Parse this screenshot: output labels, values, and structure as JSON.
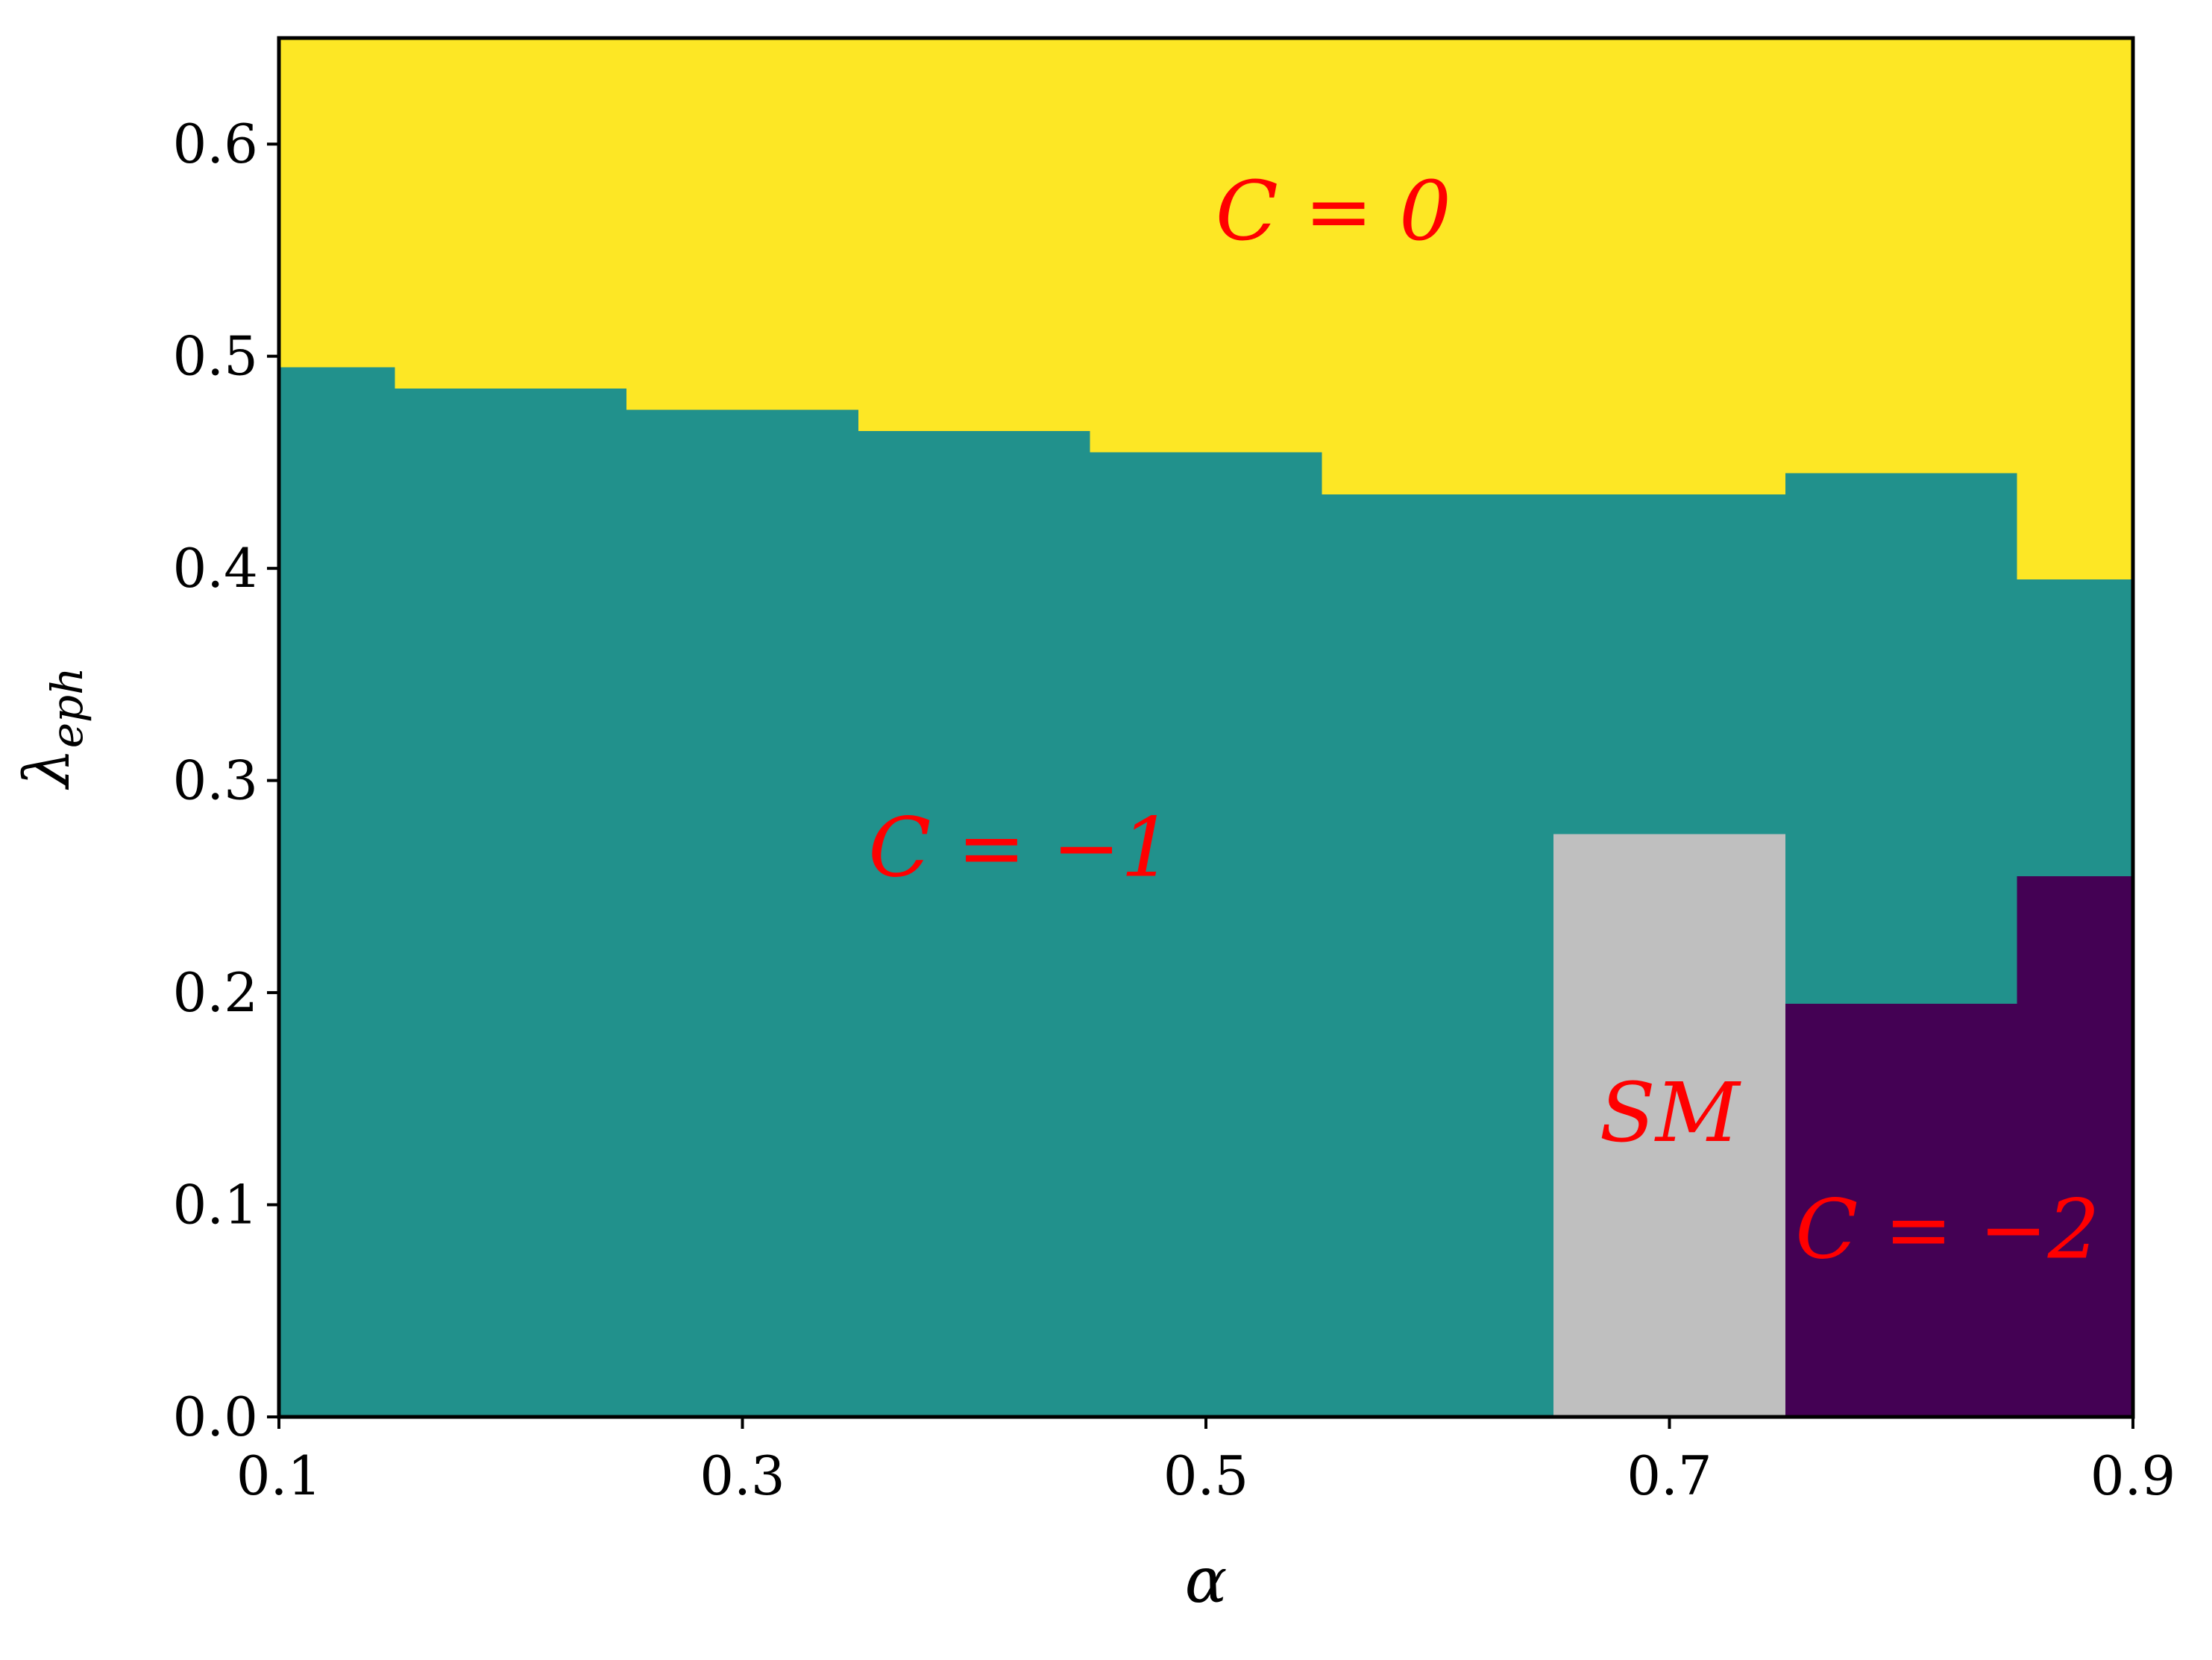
{
  "chart_data": {
    "type": "heatmap",
    "xlabel": "α",
    "ylabel": "λ",
    "ylabel_subscript": "eph",
    "xlim": [
      0.1,
      0.9
    ],
    "ylim": [
      0.0,
      0.65
    ],
    "xticks": [
      0.1,
      0.3,
      0.5,
      0.7,
      0.9
    ],
    "xtick_labels": [
      "0.1",
      "0.3",
      "0.5",
      "0.7",
      "0.9"
    ],
    "yticks": [
      0.0,
      0.1,
      0.2,
      0.3,
      0.4,
      0.5,
      0.6
    ],
    "ytick_labels": [
      "0.0",
      "0.1",
      "0.2",
      "0.3",
      "0.4",
      "0.5",
      "0.6"
    ],
    "grid": false,
    "colors": {
      "C=0": "#fde725",
      "C=-1": "#21918c",
      "C=-2": "#440154",
      "SM": "#bfbfbf"
    },
    "phase_columns": [
      {
        "alpha_range": [
          0.1,
          0.15
        ],
        "bands": [
          {
            "phase": "C=-1",
            "y": [
              0.0,
              0.495
            ]
          },
          {
            "phase": "C=0",
            "y": [
              0.495,
              0.65
            ]
          }
        ]
      },
      {
        "alpha_range": [
          0.15,
          0.25
        ],
        "bands": [
          {
            "phase": "C=-1",
            "y": [
              0.0,
              0.485
            ]
          },
          {
            "phase": "C=0",
            "y": [
              0.485,
              0.65
            ]
          }
        ]
      },
      {
        "alpha_range": [
          0.25,
          0.35
        ],
        "bands": [
          {
            "phase": "C=-1",
            "y": [
              0.0,
              0.475
            ]
          },
          {
            "phase": "C=0",
            "y": [
              0.475,
              0.65
            ]
          }
        ]
      },
      {
        "alpha_range": [
          0.35,
          0.45
        ],
        "bands": [
          {
            "phase": "C=-1",
            "y": [
              0.0,
              0.465
            ]
          },
          {
            "phase": "C=0",
            "y": [
              0.465,
              0.65
            ]
          }
        ]
      },
      {
        "alpha_range": [
          0.45,
          0.55
        ],
        "bands": [
          {
            "phase": "C=-1",
            "y": [
              0.0,
              0.455
            ]
          },
          {
            "phase": "C=0",
            "y": [
              0.455,
              0.65
            ]
          }
        ]
      },
      {
        "alpha_range": [
          0.55,
          0.65
        ],
        "bands": [
          {
            "phase": "C=-1",
            "y": [
              0.0,
              0.435
            ]
          },
          {
            "phase": "C=0",
            "y": [
              0.435,
              0.65
            ]
          }
        ]
      },
      {
        "alpha_range": [
          0.65,
          0.75
        ],
        "bands": [
          {
            "phase": "SM",
            "y": [
              0.0,
              0.275
            ]
          },
          {
            "phase": "C=-1",
            "y": [
              0.275,
              0.435
            ]
          },
          {
            "phase": "C=0",
            "y": [
              0.435,
              0.65
            ]
          }
        ]
      },
      {
        "alpha_range": [
          0.75,
          0.85
        ],
        "bands": [
          {
            "phase": "C=-2",
            "y": [
              0.0,
              0.195
            ]
          },
          {
            "phase": "C=-1",
            "y": [
              0.195,
              0.445
            ]
          },
          {
            "phase": "C=0",
            "y": [
              0.445,
              0.65
            ]
          }
        ]
      },
      {
        "alpha_range": [
          0.85,
          0.9
        ],
        "bands": [
          {
            "phase": "C=-2",
            "y": [
              0.0,
              0.255
            ]
          },
          {
            "phase": "C=-1",
            "y": [
              0.255,
              0.395
            ]
          },
          {
            "phase": "C=0",
            "y": [
              0.395,
              0.65
            ]
          }
        ]
      }
    ],
    "annotations": [
      {
        "name": "label-c0",
        "text": "C = 0",
        "x": 0.555,
        "y": 0.555
      },
      {
        "name": "label-cminus1",
        "text": "C = −1",
        "x": 0.42,
        "y": 0.255
      },
      {
        "name": "label-sm",
        "text": "SM",
        "x": 0.7,
        "y": 0.13
      },
      {
        "name": "label-cminus2",
        "text": "C = −2",
        "x": 0.82,
        "y": 0.075
      }
    ]
  }
}
